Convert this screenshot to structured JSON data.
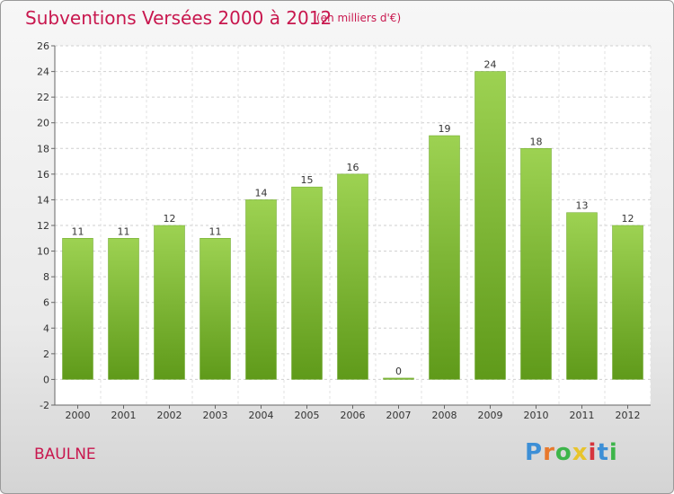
{
  "header": {
    "title": "Subventions Versées 2000 à 2012",
    "unit": "(en milliers d'€)"
  },
  "footer": {
    "place": "BAULNE",
    "logo_text": "Proxiti"
  },
  "colors": {
    "accent": "#c8174e",
    "bar_light": "#9dd252",
    "bar_dark": "#5f9a1a",
    "logo_letters": [
      "#3d8fd6",
      "#e8792d",
      "#3db54a",
      "#e8c42d",
      "#d6353d",
      "#3d8fd6",
      "#3db54a"
    ]
  },
  "chart_data": {
    "type": "bar",
    "categories": [
      "2000",
      "2001",
      "2002",
      "2003",
      "2004",
      "2005",
      "2006",
      "2007",
      "2008",
      "2009",
      "2010",
      "2011",
      "2012"
    ],
    "values": [
      11,
      11,
      12,
      11,
      14,
      15,
      16,
      0,
      19,
      24,
      18,
      13,
      12
    ],
    "ylim": [
      -2,
      26
    ],
    "yticks": [
      -2,
      0,
      2,
      4,
      6,
      8,
      10,
      12,
      14,
      16,
      18,
      20,
      22,
      24,
      26
    ],
    "grid": true,
    "data_labels": true
  }
}
